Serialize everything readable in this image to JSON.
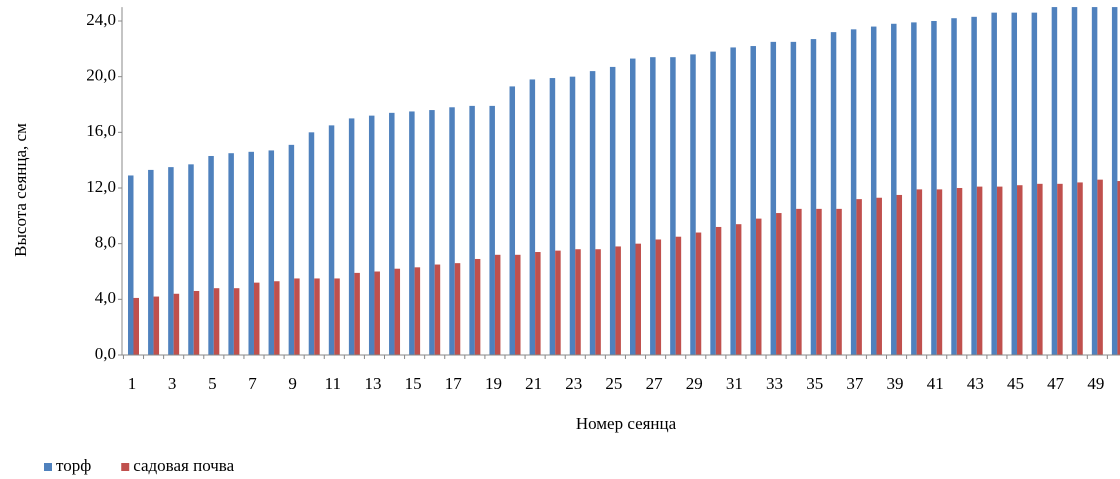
{
  "chart_data": {
    "type": "bar",
    "x_label": "Номер сеянца",
    "y_label": "Высота сеянца, см",
    "categories": [
      1,
      null,
      3,
      null,
      5,
      null,
      7,
      null,
      9,
      null,
      11,
      null,
      13,
      null,
      15,
      null,
      17,
      null,
      19,
      null,
      21,
      null,
      23,
      null,
      25,
      null,
      27,
      null,
      29,
      null,
      31,
      null,
      33,
      null,
      35,
      null,
      37,
      null,
      39,
      null,
      41,
      null,
      43,
      null,
      45,
      null,
      47,
      null,
      49,
      null
    ],
    "series": [
      {
        "name": "торф",
        "color": "#4f81bd",
        "values": [
          12.9,
          13.3,
          13.5,
          13.7,
          14.3,
          14.5,
          14.6,
          14.7,
          15.1,
          16.0,
          16.5,
          17.0,
          17.2,
          17.4,
          17.5,
          17.6,
          17.8,
          17.9,
          17.9,
          19.3,
          19.8,
          19.9,
          20.0,
          20.4,
          20.7,
          21.3,
          21.4,
          21.4,
          21.6,
          21.8,
          22.1,
          22.2,
          22.5,
          22.5,
          22.7,
          23.2,
          23.4,
          23.6,
          23.8,
          23.9,
          24.0,
          24.2,
          24.3,
          24.6,
          24.6,
          24.6,
          25.0,
          25.0,
          25.0,
          25.0
        ]
      },
      {
        "name": "садовая почва",
        "color": "#c0504d",
        "values": [
          4.1,
          4.2,
          4.4,
          4.6,
          4.8,
          4.8,
          5.2,
          5.3,
          5.5,
          5.5,
          5.5,
          5.9,
          6.0,
          6.2,
          6.3,
          6.5,
          6.6,
          6.9,
          7.2,
          7.2,
          7.4,
          7.5,
          7.6,
          7.6,
          7.8,
          8.0,
          8.3,
          8.5,
          8.8,
          9.2,
          9.4,
          9.8,
          10.2,
          10.5,
          10.5,
          10.5,
          11.2,
          11.3,
          11.5,
          11.9,
          11.9,
          12.0,
          12.1,
          12.1,
          12.2,
          12.3,
          12.3,
          12.4,
          12.6,
          12.5
        ]
      }
    ],
    "ylim": [
      0,
      25
    ],
    "yticks": [
      {
        "value": 0,
        "label": "0,0"
      },
      {
        "value": 4,
        "label": "4,0"
      },
      {
        "value": 8,
        "label": "8,0"
      },
      {
        "value": 12,
        "label": "12,0"
      },
      {
        "value": 16,
        "label": "16,0"
      },
      {
        "value": 20,
        "label": "20,0"
      },
      {
        "value": 24,
        "label": "24,0"
      }
    ],
    "grid": false,
    "legend": "bottom-left"
  }
}
